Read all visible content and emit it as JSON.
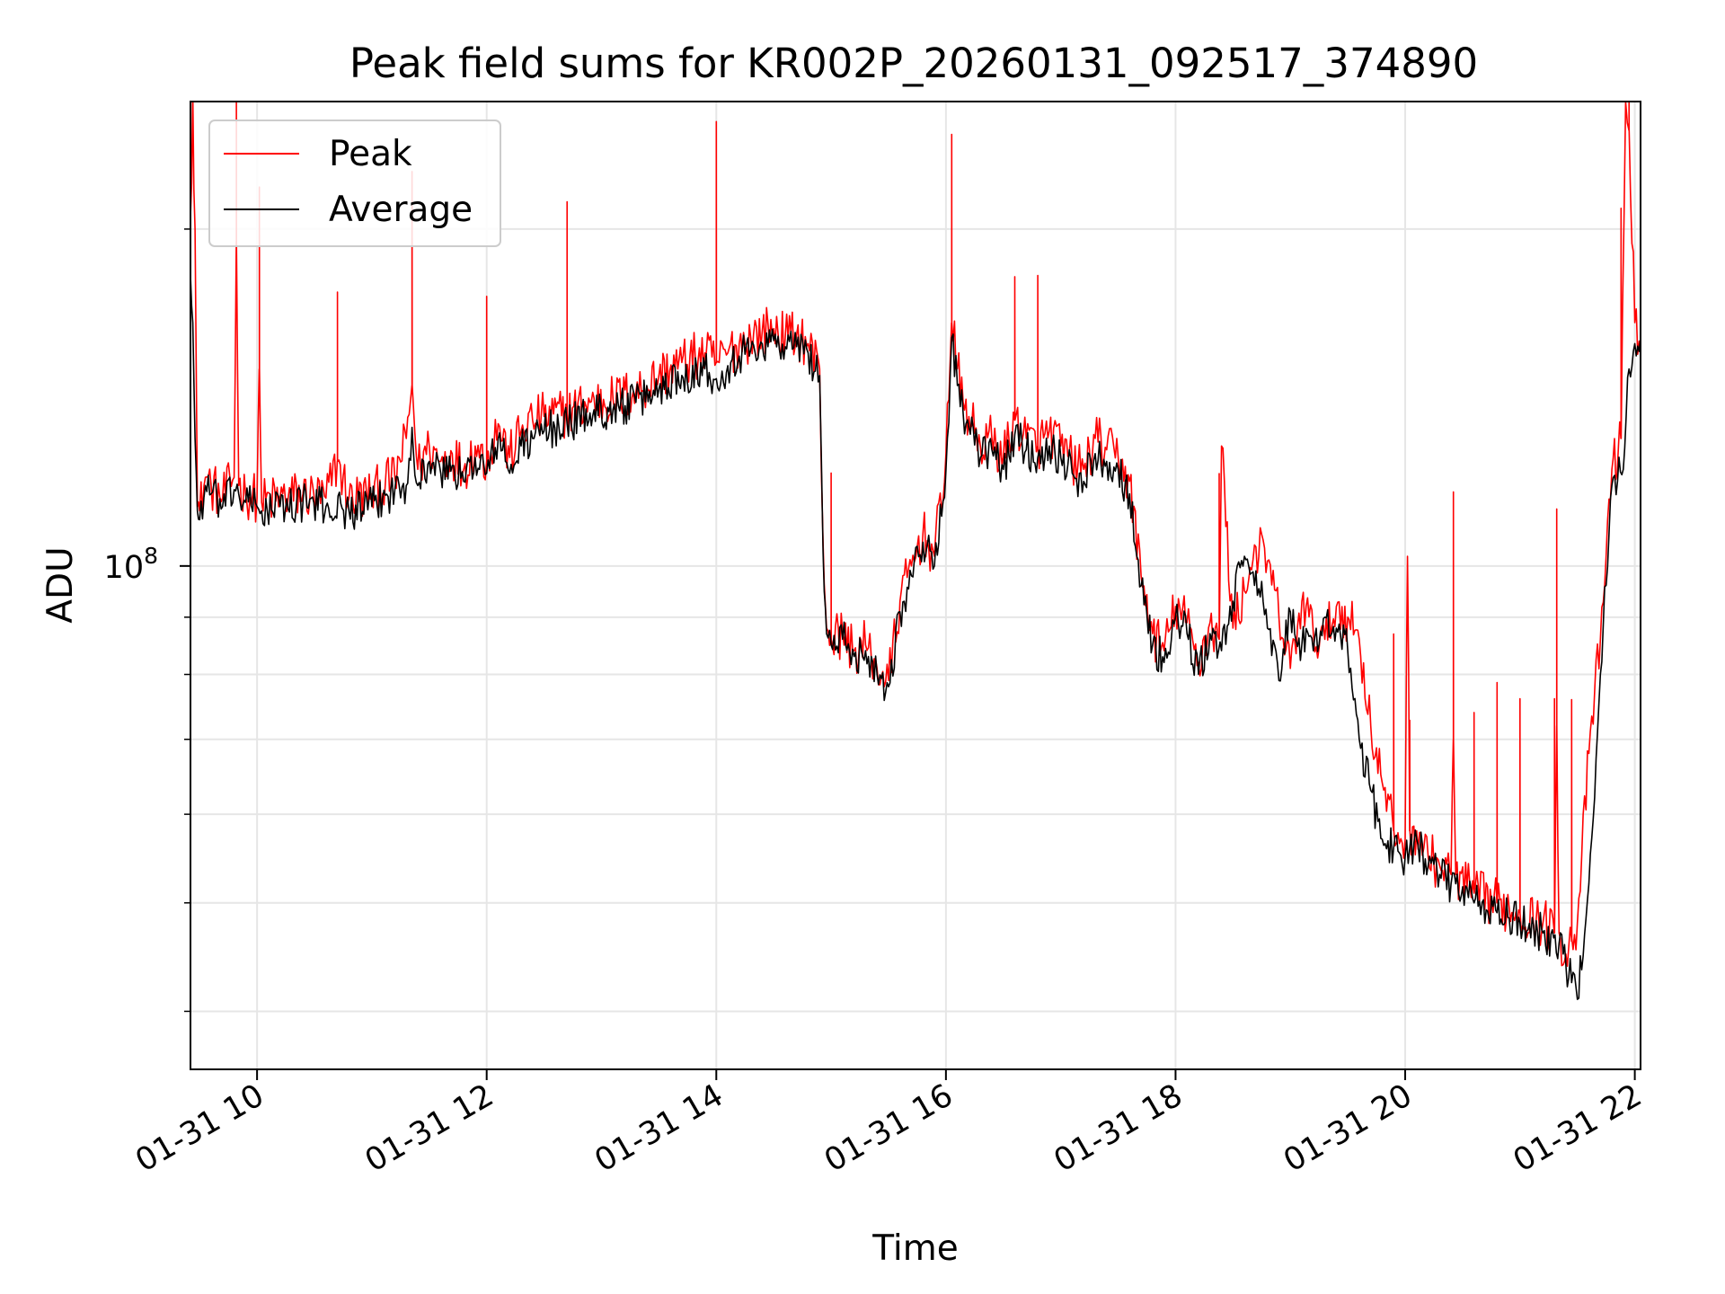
{
  "chart_data": {
    "type": "line",
    "title": "Peak field sums for KR002P_20260131_092517_374890",
    "xlabel": "Time",
    "ylabel": "ADU",
    "yscale": "log",
    "x_unit": "hours (since 01-31 00:00)",
    "xlim": [
      9.42,
      22.05
    ],
    "ylim": [
      35500000.0,
      260000000.0
    ],
    "grid": true,
    "legend_location": "top-left",
    "x_ticks": [
      {
        "value": 10,
        "label": "01-31 10"
      },
      {
        "value": 12,
        "label": "01-31 12"
      },
      {
        "value": 14,
        "label": "01-31 14"
      },
      {
        "value": 16,
        "label": "01-31 16"
      },
      {
        "value": 18,
        "label": "01-31 18"
      },
      {
        "value": 20,
        "label": "01-31 20"
      },
      {
        "value": 22,
        "label": "01-31 22"
      }
    ],
    "y_major_ticks": [
      {
        "value": 100000000,
        "base": "10",
        "exponent": "8"
      }
    ],
    "y_minor_ticks": [
      40000000,
      50000000,
      60000000,
      70000000,
      80000000,
      90000000,
      200000000
    ],
    "series": [
      {
        "name": "Peak",
        "color": "#ff0000",
        "x": [
          9.42,
          9.44,
          9.46,
          9.48,
          9.5,
          9.55,
          9.6,
          9.7,
          9.8,
          9.82,
          9.84,
          9.9,
          10.0,
          10.02,
          10.04,
          10.2,
          10.4,
          10.6,
          10.7,
          10.8,
          11.0,
          11.2,
          11.3,
          11.35,
          11.4,
          11.5,
          11.6,
          11.7,
          11.8,
          11.9,
          12.0,
          12.1,
          12.2,
          12.3,
          12.4,
          12.5,
          12.7,
          12.9,
          13.1,
          13.3,
          13.5,
          13.7,
          13.9,
          14.0,
          14.1,
          14.2,
          14.3,
          14.4,
          14.5,
          14.6,
          14.7,
          14.8,
          14.9,
          14.93,
          14.96,
          15.0,
          15.1,
          15.2,
          15.3,
          15.4,
          15.5,
          15.6,
          15.7,
          15.8,
          15.9,
          16.0,
          16.05,
          16.1,
          16.15,
          16.2,
          16.3,
          16.4,
          16.5,
          16.6,
          16.7,
          16.8,
          16.9,
          17.0,
          17.1,
          17.2,
          17.3,
          17.4,
          17.5,
          17.6,
          17.7,
          17.8,
          17.9,
          18.0,
          18.1,
          18.2,
          18.3,
          18.38,
          18.4,
          18.5,
          18.6,
          18.7,
          18.8,
          18.9,
          19.0,
          19.1,
          19.2,
          19.3,
          19.4,
          19.5,
          19.6,
          19.7,
          19.8,
          19.9,
          20.0,
          20.02,
          20.04,
          20.1,
          20.2,
          20.3,
          20.4,
          20.42,
          20.44,
          20.6,
          20.8,
          21.0,
          21.2,
          21.3,
          21.32,
          21.34,
          21.4,
          21.5,
          21.6,
          21.7,
          21.8,
          21.88,
          21.92,
          21.95,
          22.0,
          22.05
        ],
        "y": [
          205000000,
          260000000,
          200000000,
          113000000,
          112000000,
          120000000,
          118000000,
          115000000,
          120000000,
          195000000,
          118000000,
          116000000,
          115000000,
          150000000,
          114000000,
          115000000,
          116000000,
          115000000,
          124000000,
          115000000,
          116000000,
          120000000,
          130000000,
          145000000,
          122000000,
          128000000,
          124000000,
          126000000,
          122000000,
          128000000,
          124000000,
          134000000,
          125000000,
          132000000,
          135000000,
          136000000,
          137000000,
          140000000,
          141000000,
          143000000,
          148000000,
          152000000,
          155000000,
          152000000,
          155000000,
          158000000,
          160000000,
          162000000,
          163000000,
          160000000,
          161000000,
          158000000,
          150000000,
          105000000,
          88000000,
          86000000,
          87000000,
          84000000,
          85000000,
          81000000,
          79000000,
          93000000,
          100000000,
          107000000,
          102000000,
          126000000,
          165000000,
          150000000,
          140000000,
          136000000,
          128000000,
          130000000,
          125000000,
          135000000,
          130000000,
          128000000,
          132000000,
          128000000,
          124000000,
          122000000,
          130000000,
          127000000,
          125000000,
          119000000,
          98000000,
          87000000,
          84000000,
          92000000,
          89000000,
          82000000,
          89000000,
          86000000,
          128000000,
          88000000,
          95000000,
          104000000,
          101000000,
          90000000,
          81000000,
          93000000,
          87000000,
          86000000,
          92000000,
          90000000,
          86000000,
          72000000,
          64000000,
          58000000,
          57000000,
          102000000,
          58000000,
          58000000,
          55000000,
          54000000,
          53000000,
          70000000,
          53000000,
          51000000,
          50000000,
          49000000,
          48000000,
          47000000,
          72000000,
          47000000,
          45000000,
          48000000,
          68000000,
          86000000,
          122000000,
          130000000,
          260000000,
          245000000,
          165000000,
          158000000
        ],
        "spikes": [
          9.44,
          9.82,
          10.02,
          10.7,
          11.35,
          12.0,
          12.7,
          14.0,
          15.0,
          16.05,
          16.6,
          16.8,
          18.38,
          19.9,
          20.04,
          20.42,
          20.6,
          20.8,
          21.0,
          21.3,
          21.32,
          21.45,
          21.88,
          21.95
        ]
      },
      {
        "name": "Average",
        "color": "#000000",
        "x": [
          9.42,
          9.44,
          9.46,
          9.48,
          9.5,
          9.55,
          9.6,
          9.7,
          9.8,
          9.84,
          9.9,
          10.0,
          10.04,
          10.2,
          10.4,
          10.6,
          10.8,
          11.0,
          11.2,
          11.3,
          11.35,
          11.4,
          11.5,
          11.6,
          11.7,
          11.8,
          11.9,
          12.0,
          12.1,
          12.2,
          12.3,
          12.4,
          12.5,
          12.7,
          12.9,
          13.1,
          13.3,
          13.5,
          13.7,
          13.9,
          14.0,
          14.1,
          14.2,
          14.3,
          14.4,
          14.5,
          14.6,
          14.7,
          14.8,
          14.9,
          14.93,
          14.96,
          15.0,
          15.1,
          15.2,
          15.3,
          15.4,
          15.5,
          15.6,
          15.7,
          15.8,
          15.9,
          16.0,
          16.05,
          16.1,
          16.15,
          16.2,
          16.3,
          16.4,
          16.5,
          16.6,
          16.7,
          16.8,
          16.9,
          17.0,
          17.1,
          17.2,
          17.3,
          17.4,
          17.5,
          17.6,
          17.7,
          17.8,
          17.9,
          18.0,
          18.1,
          18.2,
          18.3,
          18.4,
          18.5,
          18.6,
          18.7,
          18.8,
          18.9,
          19.0,
          19.1,
          19.2,
          19.3,
          19.4,
          19.5,
          19.6,
          19.7,
          19.8,
          19.9,
          20.0,
          20.04,
          20.1,
          20.2,
          20.3,
          20.4,
          20.44,
          20.6,
          20.8,
          21.0,
          21.2,
          21.34,
          21.4,
          21.5,
          21.6,
          21.7,
          21.8,
          21.9,
          21.95,
          22.0,
          22.05
        ],
        "y": [
          182000000,
          165000000,
          130000000,
          112000000,
          110000000,
          118000000,
          116000000,
          113000000,
          117000000,
          116000000,
          114000000,
          113000000,
          112000000,
          113000000,
          114000000,
          113000000,
          112000000,
          113000000,
          117000000,
          118000000,
          133000000,
          118000000,
          124000000,
          121000000,
          123000000,
          119000000,
          125000000,
          121000000,
          130000000,
          121000000,
          128000000,
          130000000,
          132000000,
          134000000,
          137000000,
          138000000,
          140000000,
          144000000,
          148000000,
          150000000,
          147000000,
          151000000,
          154000000,
          156000000,
          158000000,
          159000000,
          157000000,
          157000000,
          155000000,
          148000000,
          103000000,
          87000000,
          85000000,
          86000000,
          83000000,
          84000000,
          80000000,
          78000000,
          91000000,
          98000000,
          105000000,
          100000000,
          122000000,
          160000000,
          145000000,
          137000000,
          133000000,
          125000000,
          127000000,
          122000000,
          131000000,
          127000000,
          125000000,
          128000000,
          125000000,
          121000000,
          119000000,
          126000000,
          124000000,
          122000000,
          116000000,
          96000000,
          85000000,
          82000000,
          90000000,
          87000000,
          80000000,
          87000000,
          84000000,
          93000000,
          102000000,
          99000000,
          88000000,
          79000000,
          91000000,
          85000000,
          84000000,
          90000000,
          88000000,
          84000000,
          70000000,
          63000000,
          57000000,
          56000000,
          55000000,
          56000000,
          57000000,
          54000000,
          53000000,
          52000000,
          52000000,
          50000000,
          49000000,
          48000000,
          47000000,
          46000000,
          44000000,
          41000000,
          52000000,
          80000000,
          118000000,
          122000000,
          150000000,
          158000000,
          160000000
        ]
      }
    ]
  }
}
